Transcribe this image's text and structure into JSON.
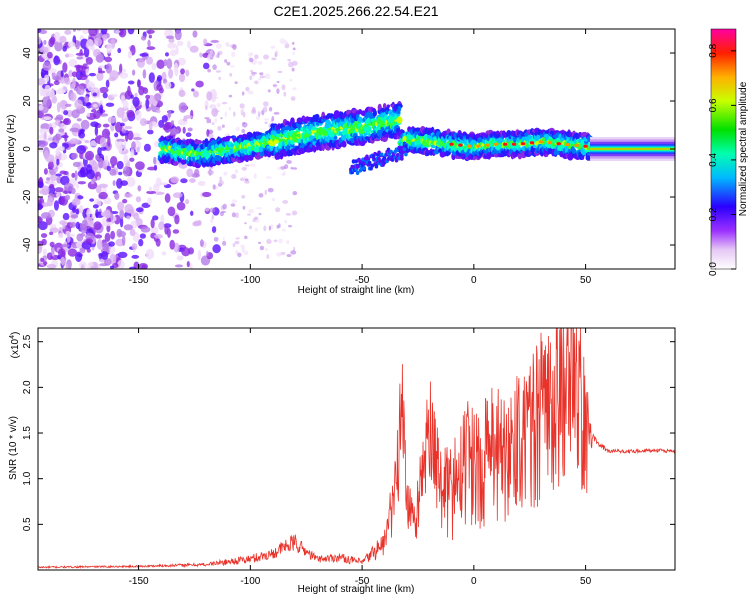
{
  "chart_data": [
    {
      "type": "heatmap",
      "title": "C2E1.2025.266.22.54.E21",
      "xlabel": "Height of straight line (km)",
      "ylabel": "Frequency (Hz)",
      "xlim": [
        -195,
        90
      ],
      "ylim": [
        -50,
        50
      ],
      "x_ticks": [
        -150,
        -100,
        -50,
        0,
        50
      ],
      "x_tick_labels": [
        "-150",
        "-100",
        "-50",
        "0",
        "50"
      ],
      "y_ticks": [
        40,
        20,
        0,
        -20,
        -40
      ],
      "y_tick_labels": [
        "40",
        "20",
        "0",
        "-20",
        "-40"
      ],
      "colorbar": {
        "label": "Normalized spectral amplitude",
        "range": [
          0,
          0.88
        ],
        "ticks": [
          0.0,
          0.2,
          0.4,
          0.6,
          0.8
        ],
        "tick_labels": [
          "0.0",
          "0.2",
          "0.4",
          "0.6",
          "0.8"
        ]
      },
      "ridge": {
        "description": "dominant frequency trace",
        "x": [
          -135,
          -120,
          -110,
          -100,
          -90,
          -80,
          -70,
          -60,
          -50,
          -40,
          -32,
          -35,
          -30,
          -20,
          -10,
          0,
          10,
          20,
          30,
          40,
          52,
          60,
          70,
          80,
          90
        ],
        "y": [
          -1,
          -2,
          0,
          1,
          3,
          5,
          7,
          8,
          9,
          11,
          12,
          1,
          4,
          3,
          2,
          1,
          2,
          2,
          3,
          2,
          1,
          0,
          0,
          0,
          0
        ]
      }
    },
    {
      "type": "line",
      "title": "",
      "xlabel": "Height of straight line (km)",
      "ylabel": "SNR (10 * v/v)",
      "y_multiplier_label": "(x10",
      "y_multiplier_exp": "4",
      "xlim": [
        -195,
        90
      ],
      "ylim": [
        0,
        2.65
      ],
      "x_ticks": [
        -150,
        -100,
        -50,
        0,
        50
      ],
      "x_tick_labels": [
        "-150",
        "-100",
        "-50",
        "0",
        "50"
      ],
      "y_ticks": [
        0.5,
        1.0,
        1.5,
        2.0,
        2.5
      ],
      "y_tick_labels": [
        "0.5",
        "1.0",
        "1.5",
        "2.0",
        "2.5"
      ],
      "series": [
        {
          "name": "SNR",
          "color": "#e8332a",
          "x": [
            -195,
            -150,
            -120,
            -100,
            -90,
            -85,
            -80,
            -75,
            -70,
            -60,
            -50,
            -40,
            -36,
            -34,
            -32,
            -30,
            -28,
            -26,
            -20,
            -15,
            -10,
            -5,
            0,
            5,
            10,
            15,
            20,
            25,
            30,
            35,
            40,
            45,
            50,
            53,
            60,
            70,
            80,
            90
          ],
          "y": [
            0.03,
            0.04,
            0.06,
            0.12,
            0.18,
            0.25,
            0.3,
            0.2,
            0.12,
            0.14,
            0.08,
            0.3,
            0.75,
            1.15,
            1.85,
            0.8,
            0.6,
            0.55,
            1.55,
            0.9,
            0.85,
            1.2,
            1.15,
            1.2,
            1.3,
            1.25,
            1.45,
            1.4,
            1.6,
            1.8,
            2.05,
            2.6,
            1.6,
            1.45,
            1.3,
            1.3,
            1.31,
            1.3
          ],
          "noise": [
            0.01,
            0.01,
            0.02,
            0.05,
            0.06,
            0.08,
            0.1,
            0.06,
            0.04,
            0.05,
            0.04,
            0.15,
            0.35,
            0.5,
            0.7,
            0.4,
            0.3,
            0.3,
            0.6,
            0.5,
            0.55,
            0.7,
            0.7,
            0.75,
            0.8,
            0.8,
            0.9,
            0.9,
            1.0,
            1.1,
            1.2,
            1.4,
            0.9,
            0.05,
            0.02,
            0.02,
            0.02,
            0.02
          ]
        }
      ]
    }
  ]
}
